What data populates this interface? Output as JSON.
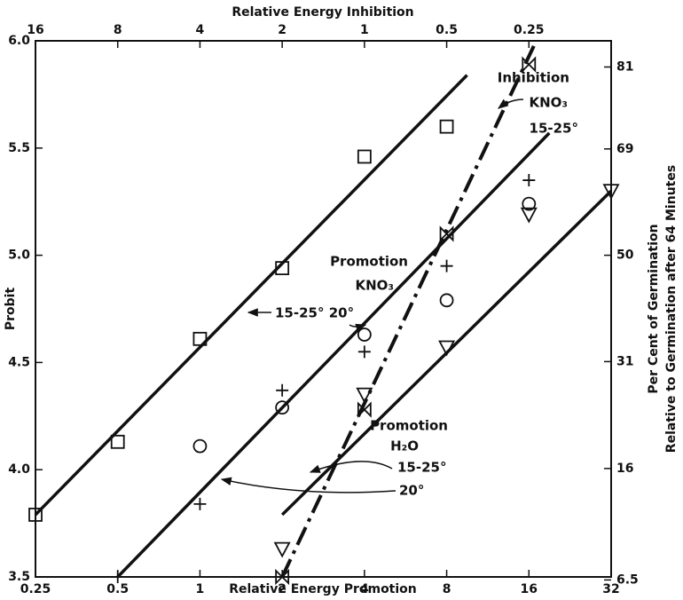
{
  "chart_data": {
    "type": "scatter",
    "xlabel": "Relative Energy Promotion",
    "x2label": "Relative Energy Inhibition",
    "ylabel": "Probit",
    "y2label": [
      "Per Cent of Germination",
      "Relative to Germination after 64 Minutes"
    ],
    "xscale": "log",
    "xlim": [
      0.25,
      32
    ],
    "xticks": [
      0.25,
      0.5,
      1,
      2,
      4,
      8,
      16,
      32
    ],
    "x2scale": "log",
    "x2lim": [
      16,
      0.125
    ],
    "x2ticks": [
      16,
      8,
      4,
      2,
      1,
      0.5,
      0.25
    ],
    "ylim": [
      3.5,
      6.0
    ],
    "yticks": [
      3.5,
      {
        "value": 4,
        "label": "4.0"
      },
      4.5,
      {
        "value": 5,
        "label": "5.0"
      },
      5.5,
      {
        "value": 6,
        "label": "6.0"
      }
    ],
    "y2scale": "probit",
    "y2ticks": [
      6.5,
      16,
      31,
      50,
      69,
      81
    ],
    "color": "#111111",
    "series": [
      {
        "marker": "square",
        "x": [
          0.25,
          0.5,
          1,
          2,
          4,
          8
        ],
        "values": [
          3.79,
          4.13,
          4.61,
          4.94,
          5.46,
          5.6
        ]
      },
      {
        "marker": "circle",
        "x": [
          1,
          2,
          4,
          8,
          16
        ],
        "values": [
          4.11,
          4.29,
          4.63,
          4.79,
          5.24
        ]
      },
      {
        "marker": "plus",
        "x": [
          0.5,
          1,
          2,
          4,
          8,
          16
        ],
        "values": [
          3.5,
          3.84,
          4.37,
          4.55,
          4.95,
          5.35
        ]
      },
      {
        "marker": "triangle-down",
        "x": [
          2,
          4,
          8,
          16,
          32
        ],
        "values": [
          3.63,
          4.35,
          4.57,
          5.19,
          5.3
        ]
      },
      {
        "marker": "bowtie",
        "axis": "x2",
        "x": [
          2,
          1,
          0.5,
          0.25
        ],
        "values": [
          3.5,
          4.28,
          5.1,
          5.89
        ]
      },
      {
        "marker": "line",
        "x": [
          0.25,
          9.5
        ],
        "values": [
          3.79,
          5.84
        ]
      },
      {
        "marker": "line",
        "x": [
          0.5,
          19
        ],
        "values": [
          3.5,
          5.57
        ]
      },
      {
        "marker": "line",
        "x": [
          2,
          32
        ],
        "values": [
          3.79,
          5.3
        ]
      },
      {
        "marker": "dashdot",
        "axis": "x2",
        "x": [
          2,
          0.235
        ],
        "values": [
          3.5,
          6.0
        ]
      }
    ],
    "annotations": [
      {
        "text": "Inhibition"
      },
      {
        "text": "KNO₃"
      },
      {
        "text": "15-25°"
      },
      {
        "text": "Promotion"
      },
      {
        "text": "KNO₃"
      },
      {
        "text": "15-25° 20°"
      },
      {
        "text": "Promotion"
      },
      {
        "text": "H₂O"
      },
      {
        "text": "15-25°"
      },
      {
        "text": "20°"
      }
    ]
  }
}
